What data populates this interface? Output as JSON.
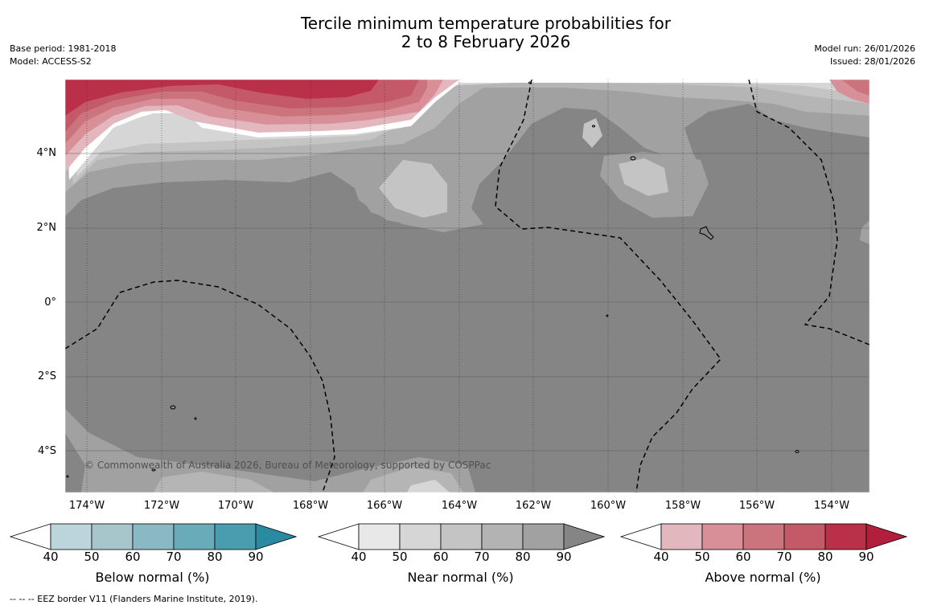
{
  "title_line1": "Tercile minimum temperature probabilities for",
  "title_line2": "2 to 8 February 2026",
  "meta_left": [
    "Base period: 1981-2018",
    "Model: ACCESS-S2"
  ],
  "meta_right": [
    "Model run: 26/01/2026",
    "Issued: 28/01/2026"
  ],
  "lat_labels": [
    "4°N",
    "2°N",
    "0°",
    "2°S",
    "4°S"
  ],
  "lon_labels": [
    "174°W",
    "172°W",
    "170°W",
    "168°W",
    "166°W",
    "164°W",
    "162°W",
    "160°W",
    "158°W",
    "156°W",
    "154°W"
  ],
  "copyright": "© Commonwealth of Australia 2026, Bureau of Meteorology, supported by COSPPac",
  "footnote": "--  --  -- EEZ border V11 (Flanders Marine Institute, 2019).",
  "colorbars": [
    {
      "label": "Below normal (%)",
      "ticks": [
        "40",
        "50",
        "60",
        "70",
        "80",
        "90"
      ],
      "colors": [
        "#ffffff",
        "#bcd4db",
        "#a6c6cc",
        "#8ab8c4",
        "#6aabb9",
        "#4a9daf",
        "#2a8aa2"
      ]
    },
    {
      "label": "Near normal (%)",
      "ticks": [
        "40",
        "50",
        "60",
        "70",
        "80",
        "90"
      ],
      "colors": [
        "#ffffff",
        "#e8e8e8",
        "#d6d6d6",
        "#c4c4c4",
        "#b3b3b3",
        "#a1a1a1",
        "#858585"
      ]
    },
    {
      "label": "Above normal (%)",
      "ticks": [
        "40",
        "50",
        "60",
        "70",
        "80",
        "90"
      ],
      "colors": [
        "#ffffff",
        "#e2b7bd",
        "#d88f98",
        "#cc747e",
        "#c45a67",
        "#bb3049",
        "#b21f3c"
      ]
    }
  ],
  "map_colors": {
    "near_90": "#858585",
    "near_80": "#a1a1a1",
    "near_70": "#b5b5b5",
    "near_60": "#c4c4c4",
    "near_50": "#d6d6d6",
    "above_50": "#e2b7bd",
    "above_60": "#d88f98",
    "above_70": "#cc747e",
    "above_80": "#c45a67",
    "above_90": "#bb3049"
  }
}
